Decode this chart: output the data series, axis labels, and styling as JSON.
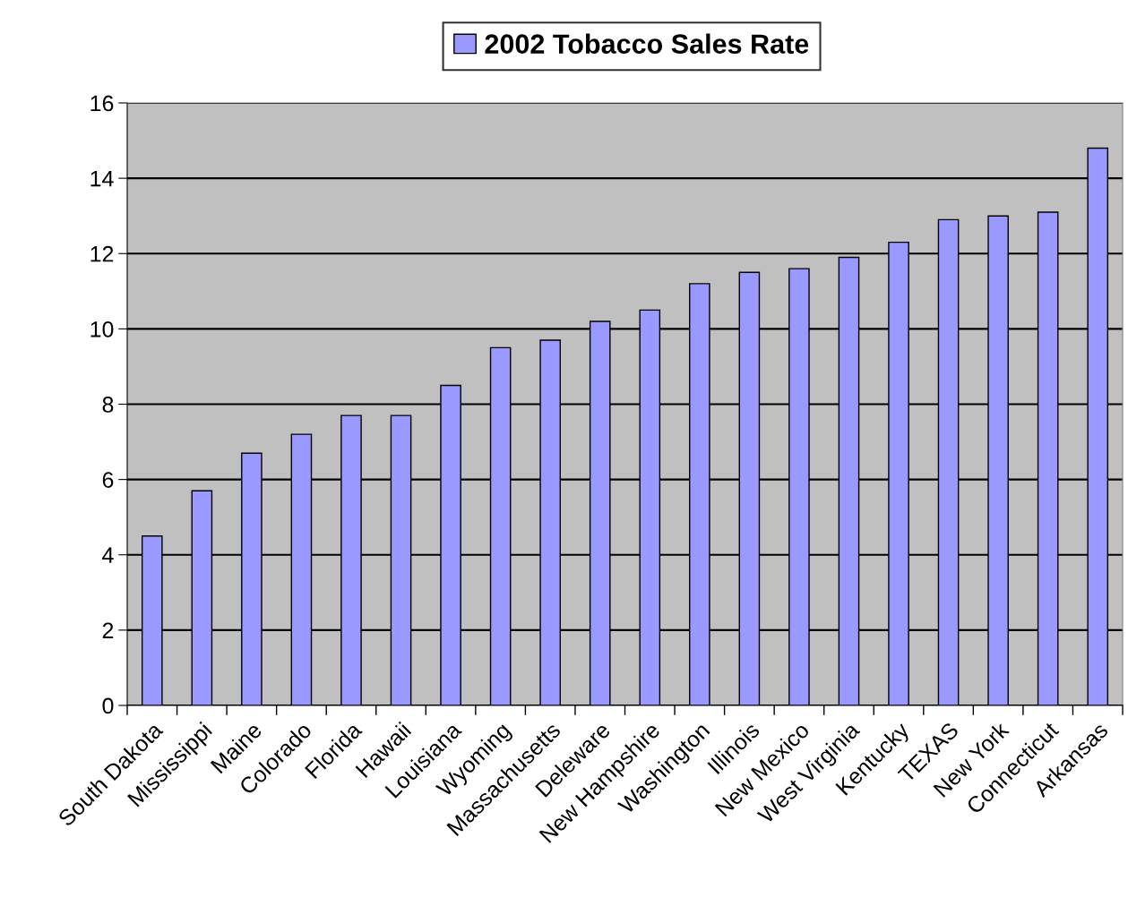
{
  "chart_data": {
    "type": "bar",
    "categories": [
      "South Dakota",
      "Mississippi",
      "Maine",
      "Colorado",
      "Florida",
      "Hawaii",
      "Louisiana",
      "Wyoming",
      "Massachusetts",
      "Deleware",
      "New Hampshire",
      "Washington",
      "Illinois",
      "New Mexico",
      "West Virginia",
      "Kentucky",
      "TEXAS",
      "New York",
      "Connecticut",
      "Arkansas"
    ],
    "series": [
      {
        "name": "2002 Tobacco Sales Rate",
        "color": "#9999ff",
        "values": [
          4.5,
          5.7,
          6.7,
          7.2,
          7.7,
          7.7,
          8.5,
          9.5,
          9.7,
          10.2,
          10.5,
          11.2,
          11.5,
          11.6,
          11.9,
          12.3,
          12.9,
          13.0,
          13.1,
          14.8
        ]
      }
    ],
    "ylim": [
      0,
      16
    ],
    "yticks": [
      0,
      2,
      4,
      6,
      8,
      10,
      12,
      14,
      16
    ],
    "grid": "y",
    "legend": "top"
  }
}
